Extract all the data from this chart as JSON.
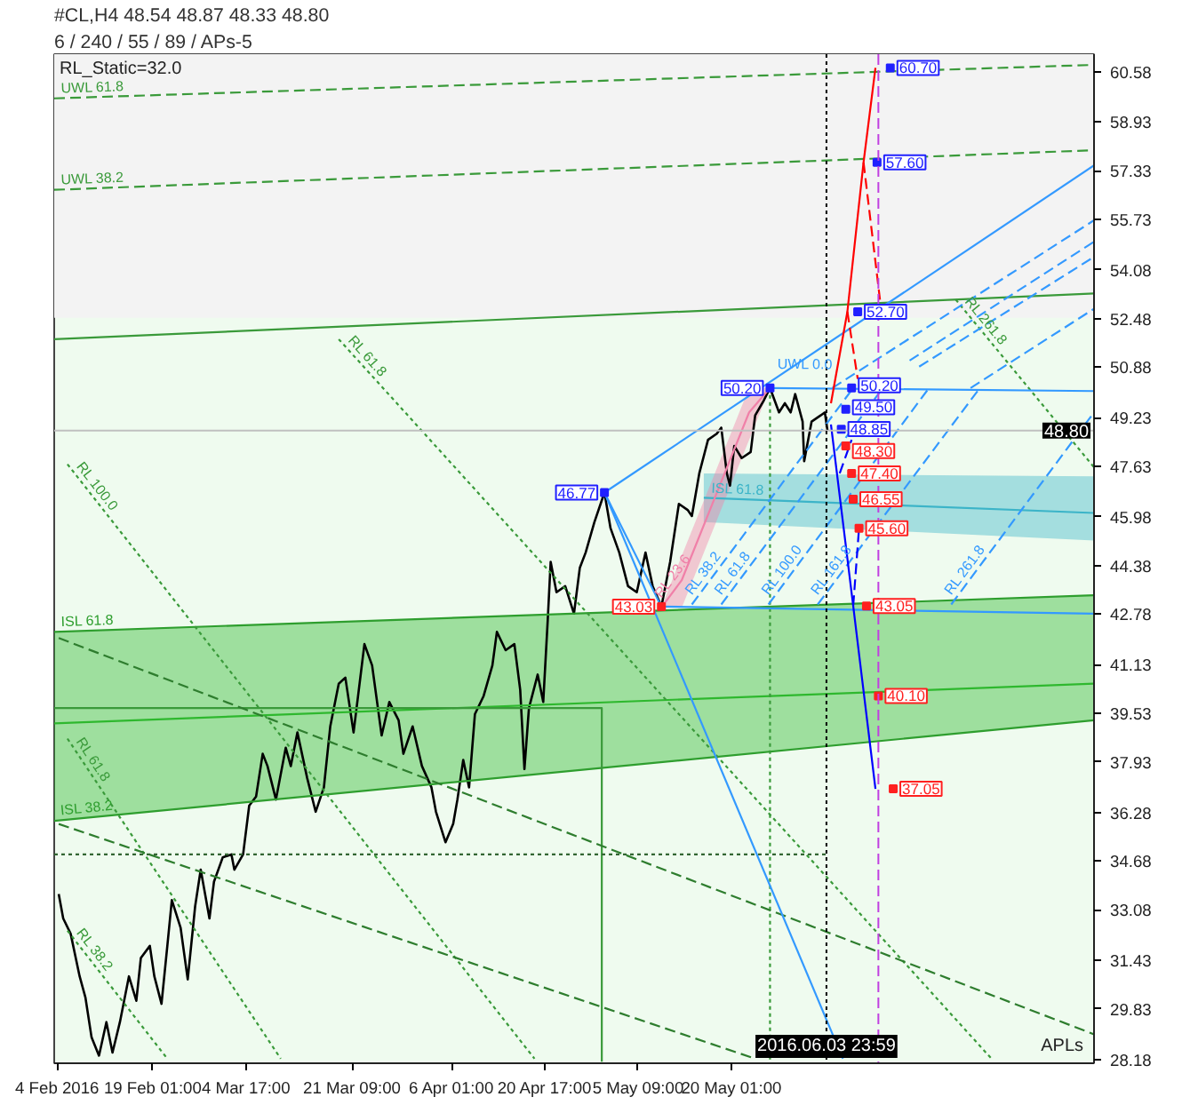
{
  "chart_data": {
    "type": "line",
    "title": "#CL,H4 48.54 48.87 48.33 48.80",
    "subtitle": "6 / 240 / 55 / 89 / APs-5",
    "xlim": [
      "2016-02-03T13:00",
      "2016-07-16T02:00"
    ],
    "xticks": [
      {
        "value": "2016-02-04",
        "label": "4 Feb 2016"
      },
      {
        "value": "2016-02-19T01:00",
        "label": "19 Feb 01:00"
      },
      {
        "value": "2016-03-04T17:00",
        "label": "4 Mar 17:00"
      },
      {
        "value": "2016-03-21T09:00",
        "label": "21 Mar 09:00"
      },
      {
        "value": "2016-04-06T01:00",
        "label": "6 Apr 01:00"
      },
      {
        "value": "2016-04-20T17:00",
        "label": "20 Apr 17:00"
      },
      {
        "value": "2016-05-05T09:00",
        "label": "5 May 09:00"
      },
      {
        "value": "2016-05-20T01:00",
        "label": "20 May 01:00"
      }
    ],
    "ylim": [
      28.05,
      61.15
    ],
    "yticks": [
      28.18,
      29.83,
      31.43,
      33.08,
      34.68,
      36.28,
      37.93,
      39.53,
      41.13,
      42.78,
      44.38,
      45.98,
      47.63,
      49.23,
      50.88,
      52.48,
      54.08,
      55.73,
      57.33,
      58.93,
      60.58
    ],
    "bands": [
      {
        "axis": "y",
        "from": 52.5,
        "to": 61.15,
        "color": "#f3f3f3"
      }
    ],
    "ref_lines": [
      {
        "axis": "y",
        "value": 48.8,
        "label": "48.80",
        "color": "#c0c0c0"
      },
      {
        "axis": "x",
        "value": "2016-06-03T23:59",
        "label": "2016.06.03 23:59",
        "color": "#000000",
        "line_style": "dotted"
      },
      {
        "axis": "x",
        "value": "2016-06-12T04:00",
        "color": "#c040e0",
        "line_style": "dashed"
      }
    ],
    "annotations": [
      "RL_Static=32.0",
      "APLs"
    ],
    "series": [
      {
        "color": "#000000",
        "x": [
          "2016-02-04T06:00",
          "2016-02-04T23:00",
          "2016-02-06T03:00",
          "2016-02-07T13:00",
          "2016-02-08T11:00",
          "2016-02-09T10:00",
          "2016-02-10T14:00",
          "2016-02-11T18:00",
          "2016-02-12T17:00",
          "2016-02-13T21:00",
          "2016-02-15T07:00",
          "2016-02-16T11:00",
          "2016-02-17T04:00",
          "2016-02-18T14:00",
          "2016-02-19T07:00",
          "2016-02-20T10:00",
          "2016-02-21T08:00",
          "2016-02-22T01:00",
          "2016-02-23T10:00",
          "2016-02-24T13:00",
          "2016-02-25T17:00",
          "2016-02-26T14:00",
          "2016-02-27T23:00",
          "2016-02-28T16:00",
          "2016-03-01T01:00",
          "2016-03-02T10:00",
          "2016-03-02T21:00",
          "2016-03-04T06:00",
          "2016-03-05T05:00",
          "2016-03-06T07:00",
          "2016-03-07T08:00",
          "2016-03-08T02:00",
          "2016-03-09T10:00",
          "2016-03-10T23:00",
          "2016-03-11T18:00",
          "2016-03-12T19:00",
          "2016-03-14T08:00",
          "2016-03-15T16:00",
          "2016-03-16T23:00",
          "2016-03-17T23:00",
          "2016-03-19T07:00",
          "2016-03-20T08:00",
          "2016-03-21T15:00",
          "2016-03-22T08:00",
          "2016-03-23T08:00",
          "2016-03-24T13:00",
          "2016-03-26T01:00",
          "2016-03-27T06:00",
          "2016-03-28T17:00",
          "2016-03-29T11:00",
          "2016-03-30T22:00",
          "2016-04-01T09:00",
          "2016-04-02T21:00",
          "2016-04-03T14:00",
          "2016-04-05T02:00",
          "2016-04-06T07:00",
          "2016-04-06T23:00",
          "2016-04-07T21:00",
          "2016-04-08T19:00",
          "2016-04-09T17:00",
          "2016-04-11T02:00",
          "2016-04-12T11:00",
          "2016-04-13T04:00",
          "2016-04-14T13:00",
          "2016-04-15T22:00",
          "2016-04-16T20:00",
          "2016-04-17T12:00",
          "2016-04-18T05:00",
          "2016-04-19T14:00",
          "2016-04-20T11:00",
          "2016-04-21T04:00",
          "2016-04-21T15:00",
          "2016-04-22T13:00",
          "2016-04-23T22:00",
          "2016-04-25T07:00",
          "2016-04-26T05:00",
          "2016-04-27T03:00",
          "2016-04-28T12:00",
          "2016-04-30T02:00",
          "2016-05-01T01:00",
          "2016-05-02T10:00",
          "2016-05-03T19:00",
          "2016-05-05T04:00",
          "2016-05-06T13:00",
          "2016-05-07T16:00",
          "2016-05-09T01:00",
          "2016-05-10T10:00",
          "2016-05-11T19:00",
          "2016-05-13T04:00",
          "2016-05-13T20:00",
          "2016-05-15T00:00",
          "2016-05-16T09:00",
          "2016-05-17T18:00",
          "2016-05-18T11:00",
          "2016-05-19T08:00",
          "2016-05-19T20:00",
          "2016-05-20T12:00",
          "2016-05-21T16:00",
          "2016-05-23T02:00",
          "2016-05-23T19:00",
          "2016-05-25T04:00",
          "2016-05-26T03:00",
          "2016-05-27T13:00",
          "2016-05-28T11:00",
          "2016-05-29T09:00",
          "2016-05-30T02:00",
          "2016-05-31T06:00",
          "2016-05-31T12:00",
          "2016-06-01T16:00",
          "2016-06-03T02:00",
          "2016-06-03T18:00",
          "2016-06-04T04:00"
        ],
        "values": [
          33.6,
          32.8,
          32.3,
          30.9,
          30.2,
          28.9,
          28.3,
          29.4,
          28.4,
          29.4,
          30.9,
          30.1,
          31.5,
          31.9,
          30.9,
          30.0,
          31.9,
          33.4,
          32.5,
          30.8,
          33.2,
          34.4,
          32.8,
          34.0,
          34.8,
          34.9,
          34.4,
          34.9,
          36.5,
          36.8,
          38.2,
          37.8,
          36.7,
          38.4,
          37.8,
          38.9,
          37.4,
          36.3,
          37.1,
          39.1,
          40.5,
          40.7,
          38.9,
          40.1,
          41.8,
          41.1,
          38.8,
          39.9,
          39.3,
          38.2,
          39.1,
          37.8,
          37.1,
          36.3,
          35.3,
          35.9,
          36.7,
          38.0,
          37.1,
          39.5,
          40.1,
          41.1,
          42.2,
          41.6,
          41.8,
          40.3,
          37.7,
          39.7,
          40.8,
          39.9,
          42.6,
          44.5,
          43.5,
          43.7,
          42.8,
          44.3,
          44.8,
          45.8,
          46.77,
          45.6,
          44.8,
          43.7,
          43.5,
          44.8,
          43.7,
          43.03,
          44.5,
          46.4,
          46.2,
          46.0,
          47.4,
          48.5,
          48.7,
          48.9,
          47.4,
          47.0,
          48.3,
          47.9,
          48.1,
          49.3,
          49.8,
          50.2,
          49.4,
          49.7,
          49.4,
          50.0,
          49.1,
          47.8,
          49.1,
          49.3,
          49.4,
          48.8
        ]
      },
      {
        "color": "#2eb82e",
        "x": [
          "2016-02-03T13:00",
          "2016-07-16T02:00"
        ],
        "values": [
          39.2,
          40.5
        ],
        "lower": [
          36.0,
          39.3
        ],
        "upper": [
          42.2,
          43.4
        ]
      },
      {
        "name": "ISL 61.8",
        "color": "#2e9e2e",
        "x": [
          "2016-02-03T13:00",
          "2016-07-16T02:00"
        ],
        "values": [
          42.2,
          43.4
        ]
      },
      {
        "name": "ISL 38.2",
        "color": "#2e9e2e",
        "x": [
          "2016-02-03T13:00",
          "2016-07-16T02:00"
        ],
        "values": [
          36.0,
          39.3
        ]
      },
      {
        "name": "ISL 61.8",
        "color": "#3cb4c8",
        "x": [
          "2016-05-15T17:00",
          "2016-07-16T02:00"
        ],
        "values": [
          46.6,
          46.1
        ],
        "lower": [
          45.8,
          45.2
        ],
        "upper": [
          47.4,
          47.3
        ]
      },
      {
        "name": "RL 23.6",
        "color": "#f080a8",
        "x": [
          "2016-05-09T01:00",
          "2016-05-12T06:00",
          "2016-05-22T20:00",
          "2016-05-26T03:00"
        ],
        "values": [
          43.0,
          43.9,
          49.4,
          50.2
        ],
        "lower": [
          43.0,
          43.0,
          48.5,
          50.2
        ],
        "upper": [
          43.0,
          44.7,
          50.2,
          50.2
        ]
      },
      {
        "name": "UWL 61.8",
        "color": "#3a9a3a",
        "x": [
          "2016-02-03T13:00",
          "2016-07-16T02:00"
        ],
        "values": [
          59.7,
          60.8
        ],
        "line_style": "dashed"
      },
      {
        "name": "UWL 38.2",
        "color": "#3a9a3a",
        "x": [
          "2016-02-03T13:00",
          "2016-07-16T02:00"
        ],
        "values": [
          56.7,
          58.0
        ],
        "line_style": "dashed"
      },
      {
        "color": "#3a9a3a",
        "x": [
          "2016-02-03T13:00",
          "2016-07-16T02:00"
        ],
        "values": [
          51.8,
          53.3
        ]
      },
      {
        "color": "#3a9a3a",
        "x": [
          "2016-02-03T13:00",
          "2016-04-29T16:00",
          "2016-04-29T16:00"
        ],
        "values": [
          39.7,
          39.7,
          28.1
        ]
      },
      {
        "color": "#3a9a3a",
        "x": [
          "2016-05-26T03:00",
          "2016-05-26T03:00"
        ],
        "values": [
          50.2,
          28.1
        ],
        "line_style": "dotted"
      },
      {
        "color": "#336633",
        "x": [
          "2016-02-03T13:00",
          "2016-06-03T23:59"
        ],
        "values": [
          34.9,
          34.9
        ],
        "line_style": "dotted"
      },
      {
        "name": "RL 100.0",
        "color": "#3a9a3a",
        "x": [
          "2016-02-05T15:00",
          "2016-04-19T02:00"
        ],
        "values": [
          47.7,
          28.2
        ],
        "line_style": "dotted"
      },
      {
        "name": "RL 61.8",
        "color": "#3a9a3a",
        "x": [
          "2016-03-19T07:00",
          "2016-06-29T23:00"
        ],
        "values": [
          51.8,
          28.2
        ],
        "line_style": "dotted"
      },
      {
        "name": "RL 61.8",
        "color": "#3a9a3a",
        "x": [
          "2016-02-05T15:00",
          "2016-03-10T04:00"
        ],
        "values": [
          38.7,
          28.2
        ],
        "line_style": "dotted"
      },
      {
        "name": "RL 38.2",
        "color": "#3a9a3a",
        "x": [
          "2016-02-05T15:00",
          "2016-02-21T08:00"
        ],
        "values": [
          32.4,
          28.2
        ],
        "line_style": "dotted"
      },
      {
        "color": "#2e7d2e",
        "x": [
          "2016-02-04T06:00",
          "2016-07-16T02:00"
        ],
        "values": [
          42.0,
          29.0
        ],
        "line_style": "dashed"
      },
      {
        "color": "#2e7d2e",
        "x": [
          "2016-02-04T06:00",
          "2016-05-23T19:00"
        ],
        "values": [
          35.9,
          28.2
        ],
        "line_style": "dashed"
      },
      {
        "name": "RL 261.8",
        "color": "#3a9a3a",
        "x": [
          "2016-06-24T08:00",
          "2016-07-16T02:00"
        ],
        "values": [
          53.1,
          47.6
        ],
        "line_style": "dotted"
      },
      {
        "color": "#3399ff",
        "x": [
          "2016-04-30T02:00",
          "2016-07-16T02:00"
        ],
        "values": [
          46.77,
          57.5
        ]
      },
      {
        "color": "#3399ff",
        "x": [
          "2016-04-30T02:00",
          "2016-05-09T01:00"
        ],
        "values": [
          46.77,
          43.03
        ]
      },
      {
        "color": "#3399ff",
        "x": [
          "2016-04-30T02:00",
          "2016-06-06T14:00"
        ],
        "values": [
          46.77,
          28.2
        ]
      },
      {
        "name": "UWL 0.0",
        "color": "#3399ff",
        "x": [
          "2016-05-26T03:00",
          "2016-07-16T02:00"
        ],
        "values": [
          50.2,
          50.1
        ]
      },
      {
        "color": "#3399ff",
        "x": [
          "2016-05-09T01:00",
          "2016-07-16T02:00"
        ],
        "values": [
          43.03,
          42.8
        ]
      },
      {
        "name": "RL 38.2",
        "color": "#3399ff",
        "x": [
          "2016-05-13T20:00",
          "2016-06-08T05:00"
        ],
        "values": [
          43.1,
          50.2
        ],
        "line_style": "dashed"
      },
      {
        "name": "RL 61.8",
        "color": "#3399ff",
        "x": [
          "2016-05-18T11:00",
          "2016-06-12T21:00"
        ],
        "values": [
          43.1,
          50.2
        ],
        "line_style": "dashed"
      },
      {
        "name": "RL 100.0",
        "color": "#3399ff",
        "x": [
          "2016-05-25T21:00",
          "2016-06-20T03:00"
        ],
        "values": [
          43.1,
          50.2
        ],
        "line_style": "dashed"
      },
      {
        "name": "RL 161.8",
        "color": "#3399ff",
        "x": [
          "2016-06-02T15:00",
          "2016-06-28T03:00"
        ],
        "values": [
          43.1,
          50.2
        ],
        "line_style": "dashed"
      },
      {
        "name": "RL 261.8",
        "color": "#3399ff",
        "x": [
          "2016-06-23T15:00",
          "2016-07-16T02:00"
        ],
        "values": [
          43.1,
          49.4
        ],
        "line_style": "dashed"
      },
      {
        "color": "#3399ff",
        "x": [
          "2016-06-04T22:00",
          "2016-07-16T02:00"
        ],
        "values": [
          50.2,
          55.7
        ],
        "line_style": "dashed"
      },
      {
        "color": "#3399ff",
        "x": [
          "2016-06-17T02:00",
          "2016-07-16T02:00"
        ],
        "values": [
          51.1,
          55.0
        ],
        "line_style": "dashed"
      },
      {
        "color": "#3399ff",
        "x": [
          "2016-06-18T14:00",
          "2016-07-16T02:00"
        ],
        "values": [
          50.9,
          54.5
        ],
        "line_style": "dashed"
      },
      {
        "color": "#3399ff",
        "x": [
          "2016-06-26T16:00",
          "2016-07-16T02:00"
        ],
        "values": [
          50.2,
          52.8
        ],
        "line_style": "dashed"
      },
      {
        "color": "#ff0000",
        "x": [
          "2016-06-04T17:00",
          "2016-06-07T07:00",
          "2016-06-09T20:00",
          "2016-06-11T17:00"
        ],
        "values": [
          49.7,
          52.7,
          57.6,
          60.7
        ]
      },
      {
        "color": "#ff0000",
        "x": [
          "2016-06-09T20:00",
          "2016-06-12T10:00"
        ],
        "values": [
          57.6,
          53.1
        ],
        "line_style": "dashed"
      },
      {
        "color": "#ff0000",
        "x": [
          "2016-06-07T07:00",
          "2016-06-08T22:00"
        ],
        "values": [
          52.7,
          50.5
        ],
        "line_style": "dashed"
      },
      {
        "color": "#0000ff",
        "x": [
          "2016-06-04T17:00",
          "2016-06-08T05:00",
          "2016-06-11T17:00"
        ],
        "values": [
          49.0,
          43.05,
          37.05
        ]
      },
      {
        "color": "#0000ff",
        "x": [
          "2016-06-08T05:00",
          "2016-06-09T03:00"
        ],
        "values": [
          43.05,
          45.6
        ],
        "line_style": "dashed"
      },
      {
        "color": "#0000ff",
        "x": [
          "2016-06-06T02:00",
          "2016-06-07T23:00"
        ],
        "values": [
          47.4,
          48.5
        ],
        "line_style": "dashed"
      },
      {
        "type": "scatter",
        "marker": "square",
        "color": "#2020ff",
        "x": [
          "2016-04-30T02:00",
          "2016-05-26T03:00",
          "2016-06-14T01:00",
          "2016-06-11T23:00",
          "2016-06-08T22:00",
          "2016-06-07T23:00",
          "2016-06-07T01:00",
          "2016-06-06T08:00"
        ],
        "values": [
          46.77,
          50.2,
          60.7,
          57.6,
          52.7,
          50.2,
          49.5,
          48.85
        ],
        "value_labels": [
          "46.77",
          "50.20",
          "60.70",
          "57.60",
          "52.70",
          "50.20",
          "49.50",
          "48.85"
        ]
      },
      {
        "type": "scatter",
        "marker": "square",
        "color": "#ff2020",
        "x": [
          "2016-05-09T01:00",
          "2016-06-07T01:00",
          "2016-06-07T23:00",
          "2016-06-08T05:00",
          "2016-06-09T03:00",
          "2016-06-10T07:00",
          "2016-06-12T04:00",
          "2016-06-14T12:00"
        ],
        "values": [
          43.03,
          48.3,
          47.4,
          46.55,
          45.6,
          43.05,
          40.1,
          37.05
        ],
        "value_labels": [
          "43.03",
          "48.30",
          "47.40",
          "46.55",
          "45.60",
          "43.05",
          "40.10",
          "37.05"
        ]
      }
    ]
  }
}
